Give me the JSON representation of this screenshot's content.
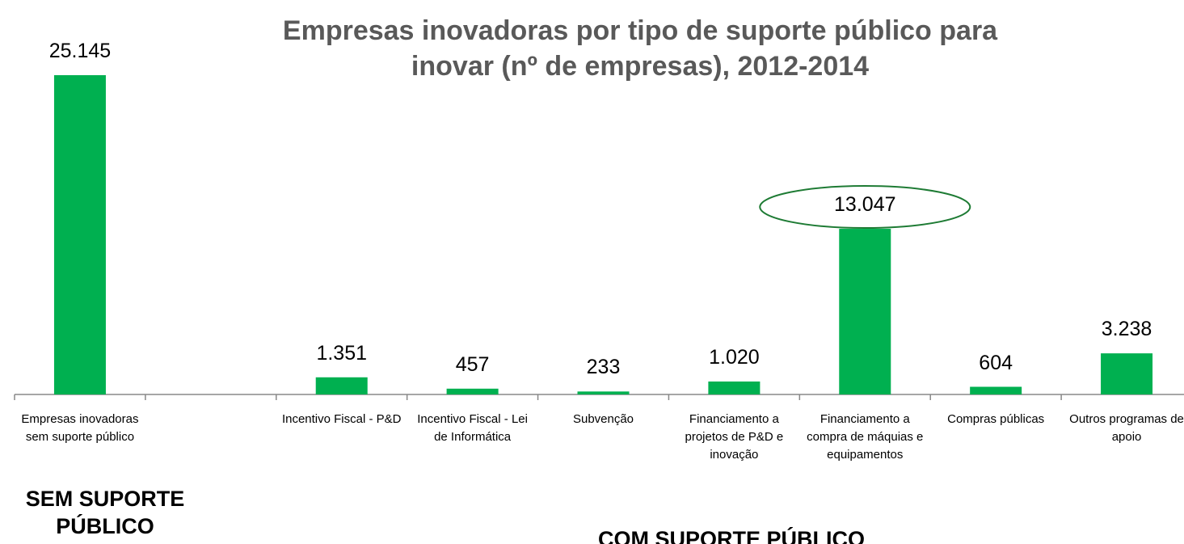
{
  "chart_data": {
    "type": "bar",
    "title": "Empresas inovadoras por tipo de suporte público para inovar (nº de empresas), 2012-2014",
    "categories": [
      "Empresas inovadoras sem suporte público",
      null,
      "Incentivo Fiscal - P&D",
      "Incentivo Fiscal - Lei de Informática",
      "Subvenção",
      "Financiamento a projetos de P&D e inovação",
      "Financiamento a compra de máquias e equipamentos",
      "Compras públicas",
      "Outros programas de apoio"
    ],
    "values": [
      25145,
      null,
      1351,
      457,
      233,
      1020,
      13047,
      604,
      3238
    ],
    "value_labels": [
      "25.145",
      null,
      "1.351",
      "457",
      "233",
      "1.020",
      "13.047",
      "604",
      "3.238"
    ],
    "color": "#00b050",
    "highlight_index": 6,
    "annotations": [
      "SEM SUPORTE PÚBLICO",
      "COM SUPORTE PÚBLICO"
    ]
  }
}
